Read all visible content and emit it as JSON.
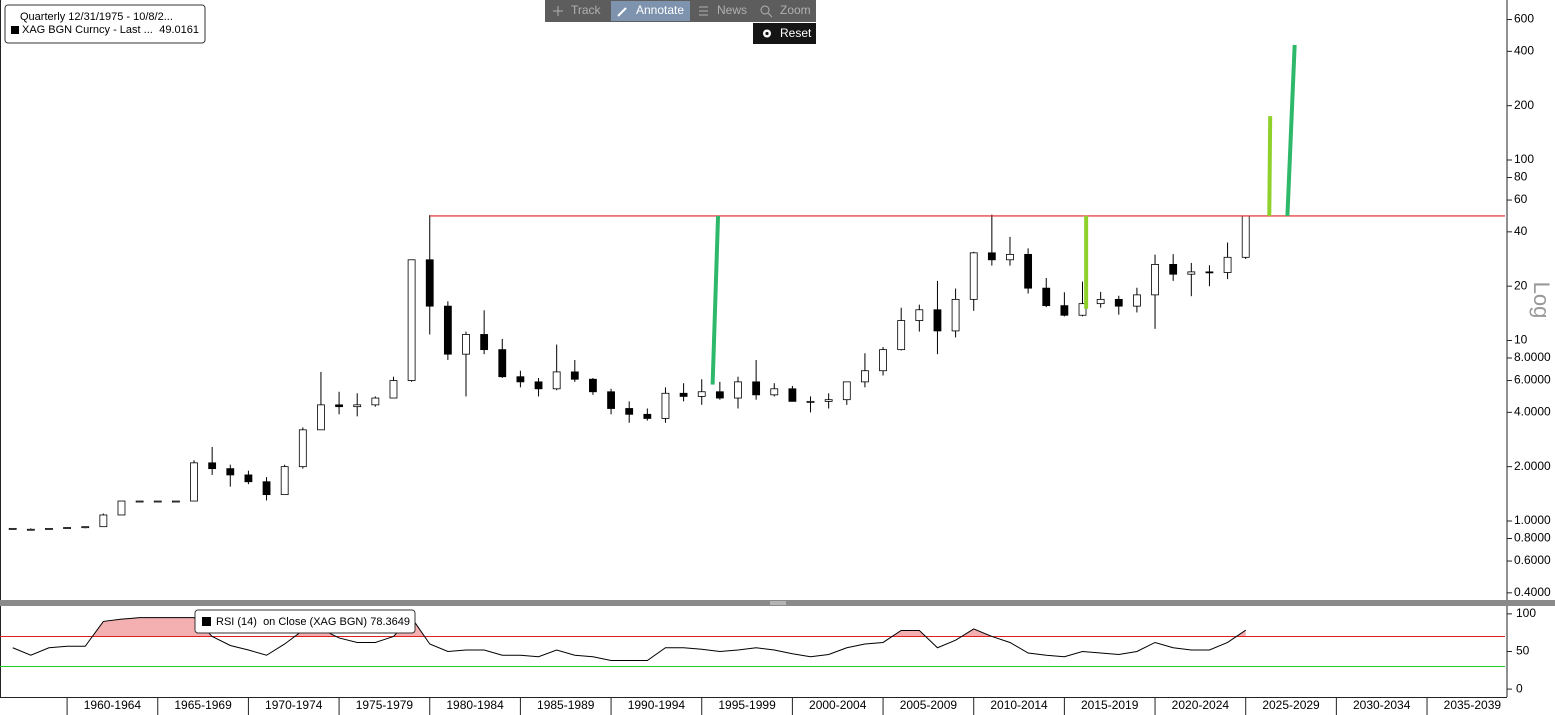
{
  "toolbar": {
    "buttons": [
      "Track",
      "Annotate",
      "News",
      "Zoom"
    ],
    "reset": "Reset"
  },
  "chart_data": [
    {
      "type": "candlestick",
      "legend_title": "Quarterly 12/31/1975 - 10/8/2...",
      "legend": {
        "name": "XAG BGN Curncy - Last ...",
        "value": 49.0161
      },
      "axis_label": "Log",
      "log_scale": true,
      "grid": false,
      "x": [
        1957,
        1958,
        1959,
        1960,
        1961,
        1962,
        1963,
        1964,
        1965,
        1966,
        1967,
        1968,
        1969,
        1970,
        1971,
        1972,
        1973,
        1974,
        1975,
        1976,
        1977,
        1978,
        1979,
        1980,
        1981,
        1982,
        1983,
        1984,
        1985,
        1986,
        1987,
        1988,
        1989,
        1990,
        1991,
        1992,
        1993,
        1994,
        1995,
        1996,
        1997,
        1998,
        1999,
        2000,
        2001,
        2002,
        2003,
        2004,
        2005,
        2006,
        2007,
        2008,
        2009,
        2010,
        2011,
        2012,
        2013,
        2014,
        2015,
        2016,
        2017,
        2018,
        2019,
        2020,
        2021,
        2022,
        2023,
        2024,
        2025
      ],
      "open": [
        0.91,
        0.9,
        0.91,
        0.91,
        0.92,
        0.93,
        1.08,
        1.29,
        1.29,
        1.29,
        1.29,
        2.1,
        1.95,
        1.8,
        1.65,
        1.4,
        2.0,
        3.2,
        4.4,
        4.3,
        4.4,
        4.8,
        6.0,
        28,
        15.5,
        8.4,
        10.8,
        8.9,
        6.3,
        5.9,
        5.4,
        6.7,
        6.1,
        5.2,
        4.2,
        3.9,
        3.7,
        5.1,
        4.9,
        5.2,
        4.8,
        5.9,
        5.0,
        5.4,
        4.6,
        4.6,
        4.7,
        5.9,
        6.8,
        8.9,
        12.9,
        14.8,
        11.3,
        16.9,
        30.6,
        28,
        30,
        19.5,
        15.6,
        13.8,
        16,
        16.9,
        15.5,
        17.9,
        26.4,
        23.3,
        24,
        23.8,
        28.9
      ],
      "high": [
        0.91,
        0.91,
        0.91,
        0.92,
        0.93,
        1.1,
        1.29,
        1.29,
        1.29,
        1.29,
        2.17,
        2.57,
        2.05,
        1.9,
        1.75,
        2.05,
        3.3,
        6.7,
        5.2,
        5.1,
        4.9,
        6.3,
        28,
        49.5,
        16.5,
        11.2,
        14.7,
        10.2,
        6.8,
        6.2,
        9.5,
        7.8,
        6.2,
        5.4,
        4.6,
        4.2,
        5.5,
        5.8,
        6.1,
        5.9,
        6.3,
        7.8,
        5.8,
        5.6,
        4.9,
        5.1,
        5.9,
        8.5,
        9.2,
        15.2,
        15.8,
        21.4,
        19.4,
        31,
        49.8,
        37.5,
        32.4,
        22.2,
        18.5,
        21.2,
        18.6,
        17.7,
        19.6,
        29.9,
        30.1,
        26.9,
        26.1,
        34.9,
        49.2
      ],
      "low": [
        0.9,
        0.89,
        0.91,
        0.91,
        0.91,
        0.93,
        1.08,
        1.29,
        1.29,
        1.29,
        1.29,
        1.8,
        1.55,
        1.6,
        1.3,
        1.4,
        1.95,
        3.2,
        3.9,
        3.8,
        4.3,
        4.8,
        5.9,
        10.8,
        7.8,
        4.9,
        8.4,
        6.2,
        5.5,
        4.9,
        5.3,
        5.9,
        5.0,
        3.9,
        3.5,
        3.6,
        3.5,
        4.6,
        4.4,
        4.7,
        4.2,
        4.7,
        4.9,
        4.6,
        4.0,
        4.2,
        4.4,
        5.5,
        6.4,
        8.8,
        11.2,
        8.4,
        10.4,
        14.6,
        26,
        26,
        18.2,
        15.3,
        13.6,
        13.6,
        15.2,
        13.9,
        14.3,
        11.6,
        21.4,
        17.6,
        20,
        21.9,
        28.3
      ],
      "close": [
        0.91,
        0.9,
        0.91,
        0.92,
        0.93,
        1.08,
        1.29,
        1.29,
        1.29,
        1.29,
        2.1,
        1.95,
        1.8,
        1.65,
        1.4,
        2.0,
        3.2,
        4.4,
        4.3,
        4.4,
        4.8,
        6.0,
        28,
        15.5,
        8.4,
        10.8,
        8.9,
        6.3,
        5.9,
        5.4,
        6.7,
        6.1,
        5.2,
        4.2,
        3.9,
        3.7,
        5.1,
        4.9,
        5.2,
        4.8,
        5.9,
        5.0,
        5.4,
        4.6,
        4.6,
        4.7,
        5.9,
        6.8,
        8.9,
        12.9,
        14.8,
        11.3,
        16.9,
        30.6,
        28,
        30,
        19.5,
        15.6,
        13.8,
        16,
        16.9,
        15.5,
        17.9,
        26.4,
        23.3,
        24,
        23.8,
        28.9,
        49.0161
      ],
      "xlim": [
        1956.3,
        2039.3
      ],
      "ylim": [
        0.365,
        770
      ],
      "yticks": [
        {
          "value": 0.4,
          "label": "0.4000"
        },
        {
          "value": 0.6,
          "label": "0.6000"
        },
        {
          "value": 0.8,
          "label": "0.8000"
        },
        {
          "value": 1,
          "label": "1.0000"
        },
        {
          "value": 2,
          "label": "2.0000"
        },
        {
          "value": 4,
          "label": "4.0000"
        },
        {
          "value": 6,
          "label": "6.0000"
        },
        {
          "value": 8,
          "label": "8.0000"
        },
        10,
        20,
        40,
        60,
        80,
        100,
        200,
        400,
        600
      ],
      "xticks": [
        1960,
        1965,
        1970,
        1975,
        1980,
        1985,
        1990,
        1995,
        2000,
        2005,
        2010,
        2015,
        2020,
        2025,
        2030,
        2035
      ],
      "period_labels": [
        {
          "value": 1962.5,
          "label": "1960-1964"
        },
        {
          "value": 1967.5,
          "label": "1965-1969"
        },
        {
          "value": 1972.5,
          "label": "1970-1974"
        },
        {
          "value": 1977.5,
          "label": "1975-1979"
        },
        {
          "value": 1982.5,
          "label": "1980-1984"
        },
        {
          "value": 1987.5,
          "label": "1985-1989"
        },
        {
          "value": 1992.5,
          "label": "1990-1994"
        },
        {
          "value": 1997.5,
          "label": "1995-1999"
        },
        {
          "value": 2002.5,
          "label": "2000-2004"
        },
        {
          "value": 2007.5,
          "label": "2005-2009"
        },
        {
          "value": 2012.5,
          "label": "2010-2014"
        },
        {
          "value": 2017.5,
          "label": "2015-2019"
        },
        {
          "value": 2022.5,
          "label": "2020-2024"
        },
        {
          "value": 2027.5,
          "label": "2025-2029"
        },
        {
          "value": 2032.5,
          "label": "2030-2034"
        },
        {
          "value": 2037.5,
          "label": "2035-2039"
        }
      ],
      "resistance": {
        "value": 49,
        "x_start": 1980,
        "color": "#e02020"
      },
      "projections": [
        {
          "x": [
            1995.6,
            1995.9
          ],
          "y": [
            5.7,
            49
          ],
          "color": "#2eb86a"
        },
        {
          "x": [
            2016.2,
            2016.2
          ],
          "y": [
            15,
            49
          ],
          "color": "#8fd12b"
        },
        {
          "x": [
            2026.3,
            2026.35
          ],
          "y": [
            49,
            175
          ],
          "color": "#8fd12b"
        },
        {
          "x": [
            2027.3,
            2027.7
          ],
          "y": [
            49,
            434
          ],
          "color": "#2eb86a"
        }
      ]
    },
    {
      "type": "line",
      "legend": {
        "name": "RSI (14)  on Close (XAG BGN)",
        "value": 78.3649
      },
      "color": "#000000",
      "fill_color": "#f4b0b0",
      "x": [
        1957,
        1958,
        1959,
        1960,
        1961,
        1962,
        1963,
        1964,
        1965,
        1966,
        1967,
        1968,
        1969,
        1970,
        1971,
        1972,
        1973,
        1974,
        1975,
        1976,
        1977,
        1978,
        1979,
        1980,
        1981,
        1982,
        1983,
        1984,
        1985,
        1986,
        1987,
        1988,
        1989,
        1990,
        1991,
        1992,
        1993,
        1994,
        1995,
        1996,
        1997,
        1998,
        1999,
        2000,
        2001,
        2002,
        2003,
        2004,
        2005,
        2006,
        2007,
        2008,
        2009,
        2010,
        2011,
        2012,
        2013,
        2014,
        2015,
        2016,
        2017,
        2018,
        2019,
        2020,
        2021,
        2022,
        2023,
        2024,
        2025
      ],
      "values": [
        55,
        45,
        55,
        57,
        57,
        90,
        93,
        95,
        95,
        95,
        95,
        70,
        58,
        52,
        45,
        60,
        78,
        80,
        68,
        62,
        62,
        70,
        95,
        60,
        50,
        52,
        52,
        45,
        45,
        43,
        52,
        45,
        43,
        38,
        38,
        38,
        55,
        55,
        53,
        50,
        52,
        55,
        52,
        47,
        43,
        46,
        55,
        60,
        62,
        78,
        78,
        55,
        65,
        80,
        70,
        62,
        48,
        45,
        43,
        50,
        48,
        46,
        50,
        62,
        55,
        52,
        52,
        62,
        78.3649
      ],
      "xlim": [
        1956.3,
        2039.3
      ],
      "ylim": [
        -10.5,
        110.5
      ],
      "yticks": [
        0,
        50,
        100
      ],
      "levels": [
        {
          "value": 70,
          "color": "#e02020"
        },
        {
          "value": 30,
          "color": "#22cc22"
        }
      ]
    }
  ]
}
